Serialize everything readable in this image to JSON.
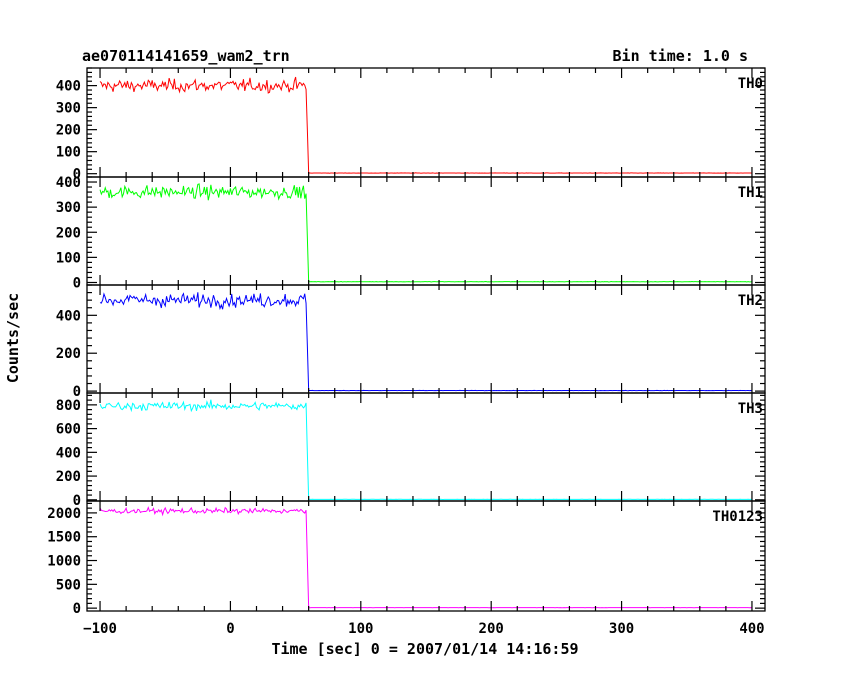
{
  "chart_data": {
    "type": "line",
    "title": "ae070114141659_wam2_trn",
    "subtitle": "Bin time: 1.0 s",
    "xlabel": "Time [sec] 0 = 2007/01/14 14:16:59",
    "ylabel": "Counts/sec",
    "xlim": [
      -110,
      410
    ],
    "x_ticks": [
      -100,
      0,
      100,
      200,
      300,
      400
    ],
    "x_tick_labels": [
      "−100",
      "0",
      "100",
      "200",
      "300",
      "400"
    ],
    "bin_time": 1.0,
    "drop_time": 60,
    "grid": false,
    "panels": [
      {
        "label": "TH0",
        "color": "#ff0000",
        "ylim": [
          -15,
          480
        ],
        "yticks": [
          0,
          100,
          200,
          300,
          400
        ],
        "level_before": 400,
        "noise": 20,
        "level_after": 3
      },
      {
        "label": "TH1",
        "color": "#00ff00",
        "ylim": [
          -10,
          420
        ],
        "yticks": [
          0,
          100,
          200,
          300,
          400
        ],
        "level_before": 360,
        "noise": 18,
        "level_after": 3
      },
      {
        "label": "TH2",
        "color": "#0000ff",
        "ylim": [
          -10,
          560
        ],
        "yticks": [
          0,
          200,
          400
        ],
        "level_before": 480,
        "noise": 25,
        "level_after": 3
      },
      {
        "label": "TH3",
        "color": "#00ffff",
        "ylim": [
          -10,
          900
        ],
        "yticks": [
          0,
          200,
          400,
          600,
          800
        ],
        "level_before": 790,
        "noise": 25,
        "level_after": 4
      },
      {
        "label": "TH0123",
        "color": "#ff00ff",
        "ylim": [
          -60,
          2250
        ],
        "yticks": [
          0,
          500,
          1000,
          1500,
          2000
        ],
        "level_before": 2040,
        "noise": 40,
        "level_after": 10
      }
    ]
  }
}
